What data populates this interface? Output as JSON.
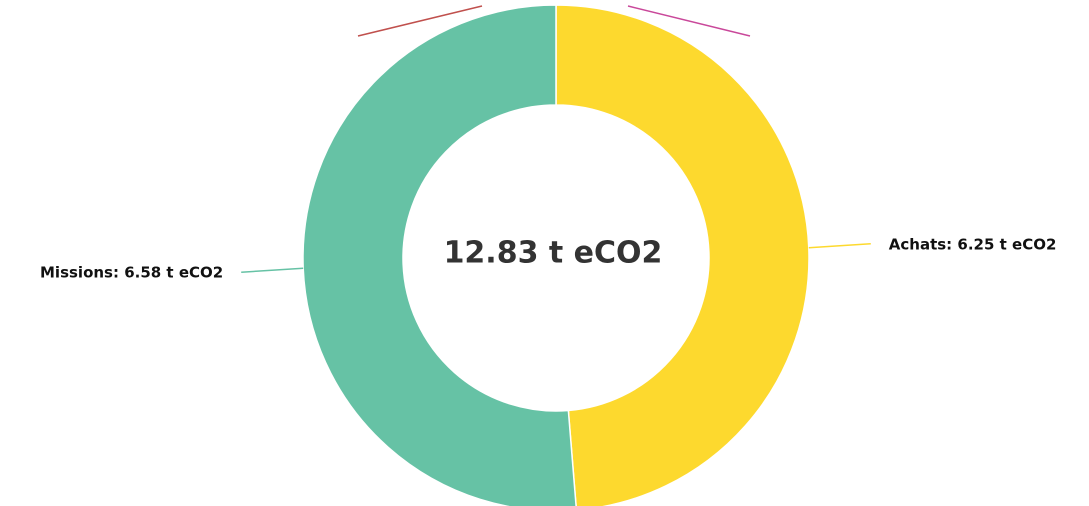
{
  "chart_data": {
    "type": "donut",
    "center_label": "12.83 t eCO2",
    "categories": [
      "Achats",
      "Missions"
    ],
    "values": [
      6.25,
      6.58
    ],
    "value_labels": [
      "Achats: 6.25 t eCO2",
      "Missions: 6.58 t eCO2"
    ],
    "colors": [
      "#fdd92e",
      "#66c2a5"
    ]
  }
}
